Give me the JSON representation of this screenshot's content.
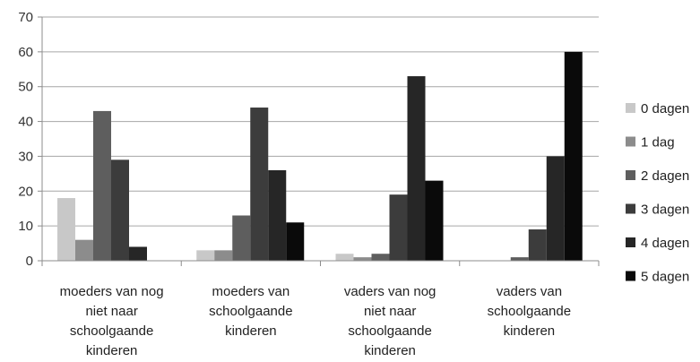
{
  "chart_data": {
    "type": "bar",
    "categories": [
      [
        "moeders van nog",
        "niet naar",
        "schoolgaande",
        "kinderen"
      ],
      [
        "moeders van",
        "schoolgaande",
        "kinderen"
      ],
      [
        "vaders van nog",
        "niet naar",
        "schoolgaande",
        "kinderen"
      ],
      [
        "vaders van",
        "schoolgaande",
        "kinderen"
      ]
    ],
    "series": [
      {
        "name": "0 dagen",
        "color": "#c8c8c8",
        "values": [
          18,
          3,
          2,
          0
        ]
      },
      {
        "name": "1 dag",
        "color": "#8c8c8c",
        "values": [
          6,
          3,
          1,
          0
        ]
      },
      {
        "name": "2 dagen",
        "color": "#5e5e5e",
        "values": [
          43,
          13,
          2,
          1
        ]
      },
      {
        "name": "3 dagen",
        "color": "#3c3c3c",
        "values": [
          29,
          44,
          19,
          9
        ]
      },
      {
        "name": "4 dagen",
        "color": "#262626",
        "values": [
          4,
          26,
          53,
          30
        ]
      },
      {
        "name": "5 dagen",
        "color": "#0a0a0a",
        "values": [
          0,
          11,
          23,
          60
        ]
      }
    ],
    "ylim": [
      0,
      70
    ],
    "yticks": [
      0,
      10,
      20,
      30,
      40,
      50,
      60,
      70
    ],
    "grid": true,
    "legend": "right"
  }
}
